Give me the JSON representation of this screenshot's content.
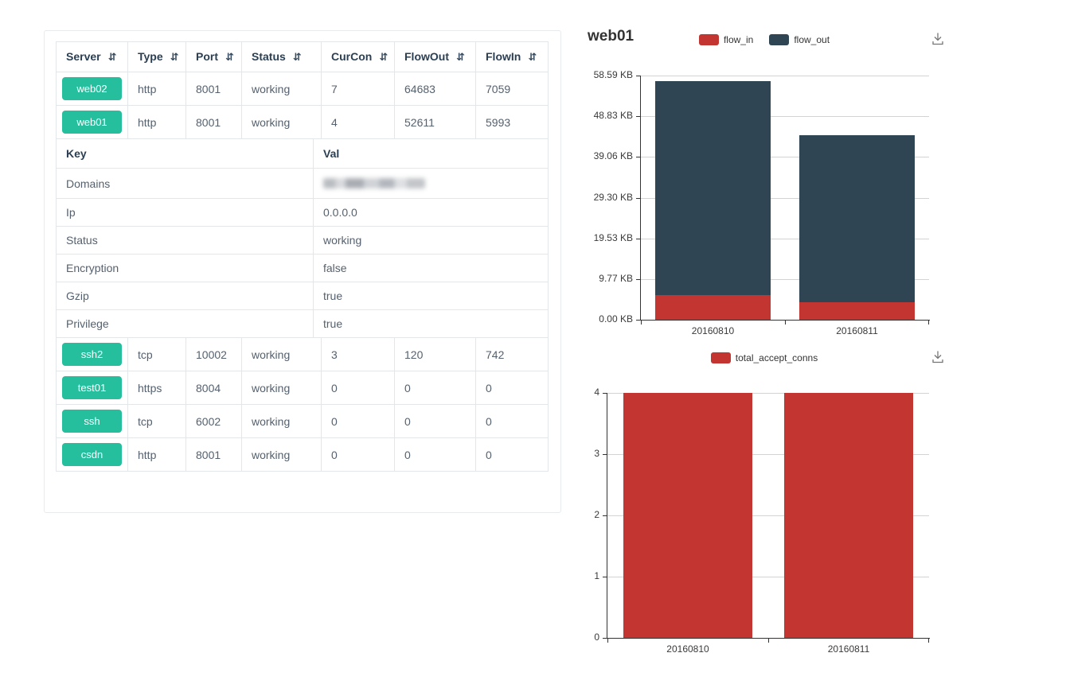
{
  "table": {
    "sort_icon": "⇵",
    "columns": [
      "Server",
      "Type",
      "Port",
      "Status",
      "CurCon",
      "FlowOut",
      "FlowIn"
    ],
    "rows_top": [
      {
        "server": "web02",
        "type": "http",
        "port": "8001",
        "status": "working",
        "curcon": "7",
        "flowout": "64683",
        "flowin": "7059"
      },
      {
        "server": "web01",
        "type": "http",
        "port": "8001",
        "status": "working",
        "curcon": "4",
        "flowout": "52611",
        "flowin": "5993"
      }
    ],
    "kv_header": {
      "key": "Key",
      "val": "Val"
    },
    "kv_rows": [
      {
        "key": "Domains",
        "val": "",
        "redacted": true
      },
      {
        "key": "Ip",
        "val": "0.0.0.0"
      },
      {
        "key": "Status",
        "val": "working"
      },
      {
        "key": "Encryption",
        "val": "false"
      },
      {
        "key": "Gzip",
        "val": "true"
      },
      {
        "key": "Privilege",
        "val": "true"
      }
    ],
    "rows_bottom": [
      {
        "server": "ssh2",
        "type": "tcp",
        "port": "10002",
        "status": "working",
        "curcon": "3",
        "flowout": "120",
        "flowin": "742"
      },
      {
        "server": "test01",
        "type": "https",
        "port": "8004",
        "status": "working",
        "curcon": "0",
        "flowout": "0",
        "flowin": "0"
      },
      {
        "server": "ssh",
        "type": "tcp",
        "port": "6002",
        "status": "working",
        "curcon": "0",
        "flowout": "0",
        "flowin": "0"
      },
      {
        "server": "csdn",
        "type": "http",
        "port": "8001",
        "status": "working",
        "curcon": "0",
        "flowout": "0",
        "flowin": "0"
      }
    ]
  },
  "colors": {
    "accent_green": "#26bf9e",
    "series_red": "#c23531",
    "series_dark": "#2f4554"
  },
  "chart_data": [
    {
      "type": "bar",
      "stacked": true,
      "title": "web01",
      "categories": [
        "20160810",
        "20160811"
      ],
      "series": [
        {
          "name": "flow_in",
          "color": "#c23531",
          "values": [
            5.85,
            4.2
          ]
        },
        {
          "name": "flow_out",
          "color": "#2f4554",
          "values": [
            51.38,
            40.1
          ]
        }
      ],
      "unit": "KB",
      "ylim": [
        0,
        58.59
      ],
      "yticks": [
        {
          "value": 0,
          "label": "0.00 KB"
        },
        {
          "value": 9.765,
          "label": "9.77 KB"
        },
        {
          "value": 19.53,
          "label": "19.53 KB"
        },
        {
          "value": 29.295,
          "label": "29.30 KB"
        },
        {
          "value": 39.06,
          "label": "39.06 KB"
        },
        {
          "value": 48.825,
          "label": "48.83 KB"
        },
        {
          "value": 58.59,
          "label": "58.59 KB"
        }
      ],
      "legend_position": "top-center",
      "grid": "horizontal"
    },
    {
      "type": "bar",
      "stacked": false,
      "title": "",
      "categories": [
        "20160810",
        "20160811"
      ],
      "series": [
        {
          "name": "total_accept_conns",
          "color": "#c23531",
          "values": [
            4,
            4
          ]
        }
      ],
      "unit": "",
      "ylim": [
        0,
        4
      ],
      "yticks": [
        {
          "value": 0,
          "label": "0"
        },
        {
          "value": 1,
          "label": "1"
        },
        {
          "value": 2,
          "label": "2"
        },
        {
          "value": 3,
          "label": "3"
        },
        {
          "value": 4,
          "label": "4"
        }
      ],
      "legend_position": "top-center",
      "grid": "horizontal"
    }
  ]
}
